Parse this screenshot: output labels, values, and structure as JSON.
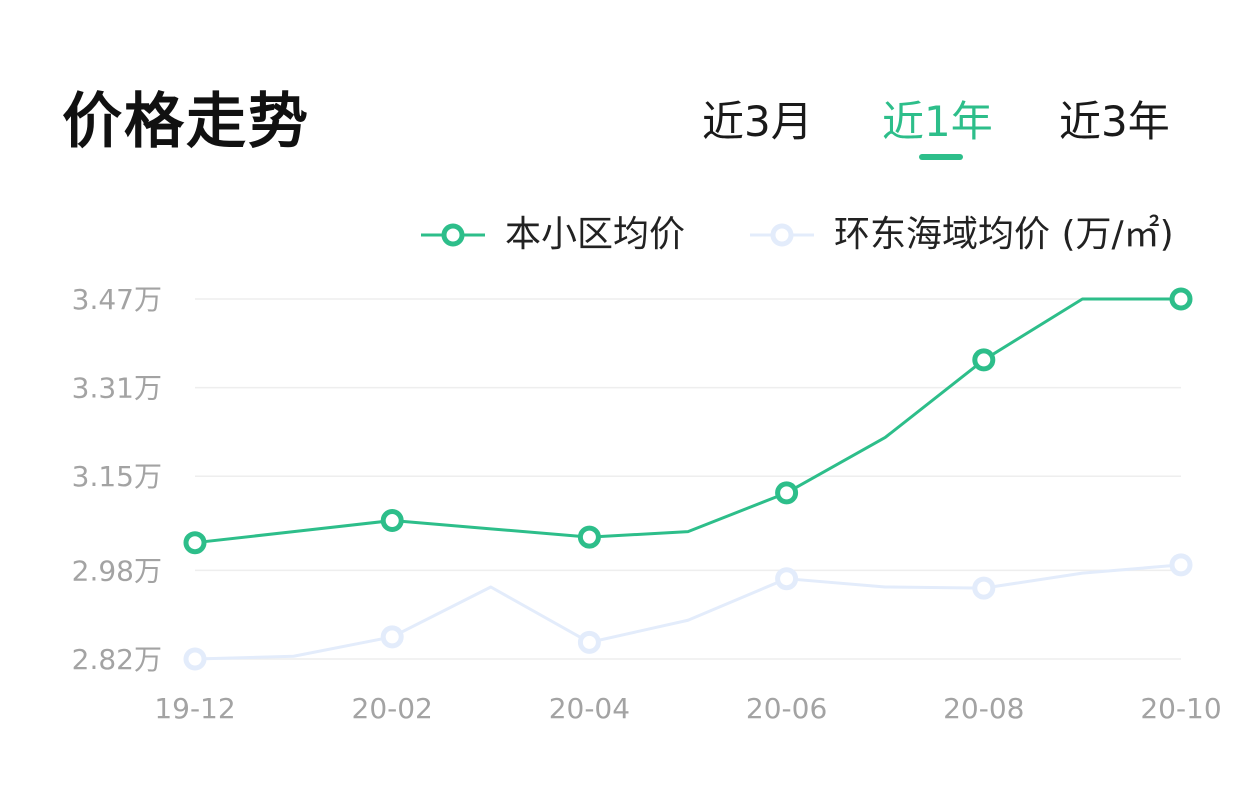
{
  "header": {
    "title": "价格走势",
    "tabs": [
      {
        "label": "近3月",
        "active": false
      },
      {
        "label": "近1年",
        "active": true
      },
      {
        "label": "近3年",
        "active": false
      }
    ]
  },
  "colors": {
    "accent": "#2dbe8a",
    "series_community": "#2dbe8a",
    "series_area": "#e3ecfb",
    "grid": "#eeeeee",
    "tick_text": "#a3a3a3"
  },
  "legend": {
    "unit": "(万/㎡)"
  },
  "chart_data": {
    "type": "line",
    "x": [
      "19-12",
      "20-01",
      "20-02",
      "20-03",
      "20-04",
      "20-05",
      "20-06",
      "20-07",
      "20-08",
      "20-09",
      "20-10"
    ],
    "xticks": [
      "19-12",
      "20-02",
      "20-04",
      "20-06",
      "20-08",
      "20-10"
    ],
    "yticks": [
      {
        "value": 3.47,
        "label": "3.47万"
      },
      {
        "value": 3.31,
        "label": "3.31万"
      },
      {
        "value": 3.15,
        "label": "3.15万"
      },
      {
        "value": 2.98,
        "label": "2.98万"
      },
      {
        "value": 2.82,
        "label": "2.82万"
      }
    ],
    "ylim": [
      2.82,
      3.47
    ],
    "grid": true,
    "legend_position": "top-right",
    "series": [
      {
        "name": "本小区均价",
        "values": [
          3.03,
          3.05,
          3.07,
          3.055,
          3.04,
          3.05,
          3.12,
          3.22,
          3.36,
          3.47,
          3.47
        ],
        "markers": [
          true,
          false,
          true,
          false,
          true,
          false,
          true,
          false,
          true,
          false,
          true
        ]
      },
      {
        "name": "环东海域均价",
        "values": [
          2.82,
          2.825,
          2.86,
          2.95,
          2.85,
          2.89,
          2.965,
          2.95,
          2.948,
          2.975,
          2.99
        ],
        "markers": [
          true,
          false,
          true,
          false,
          true,
          false,
          true,
          false,
          true,
          false,
          true
        ]
      }
    ]
  }
}
